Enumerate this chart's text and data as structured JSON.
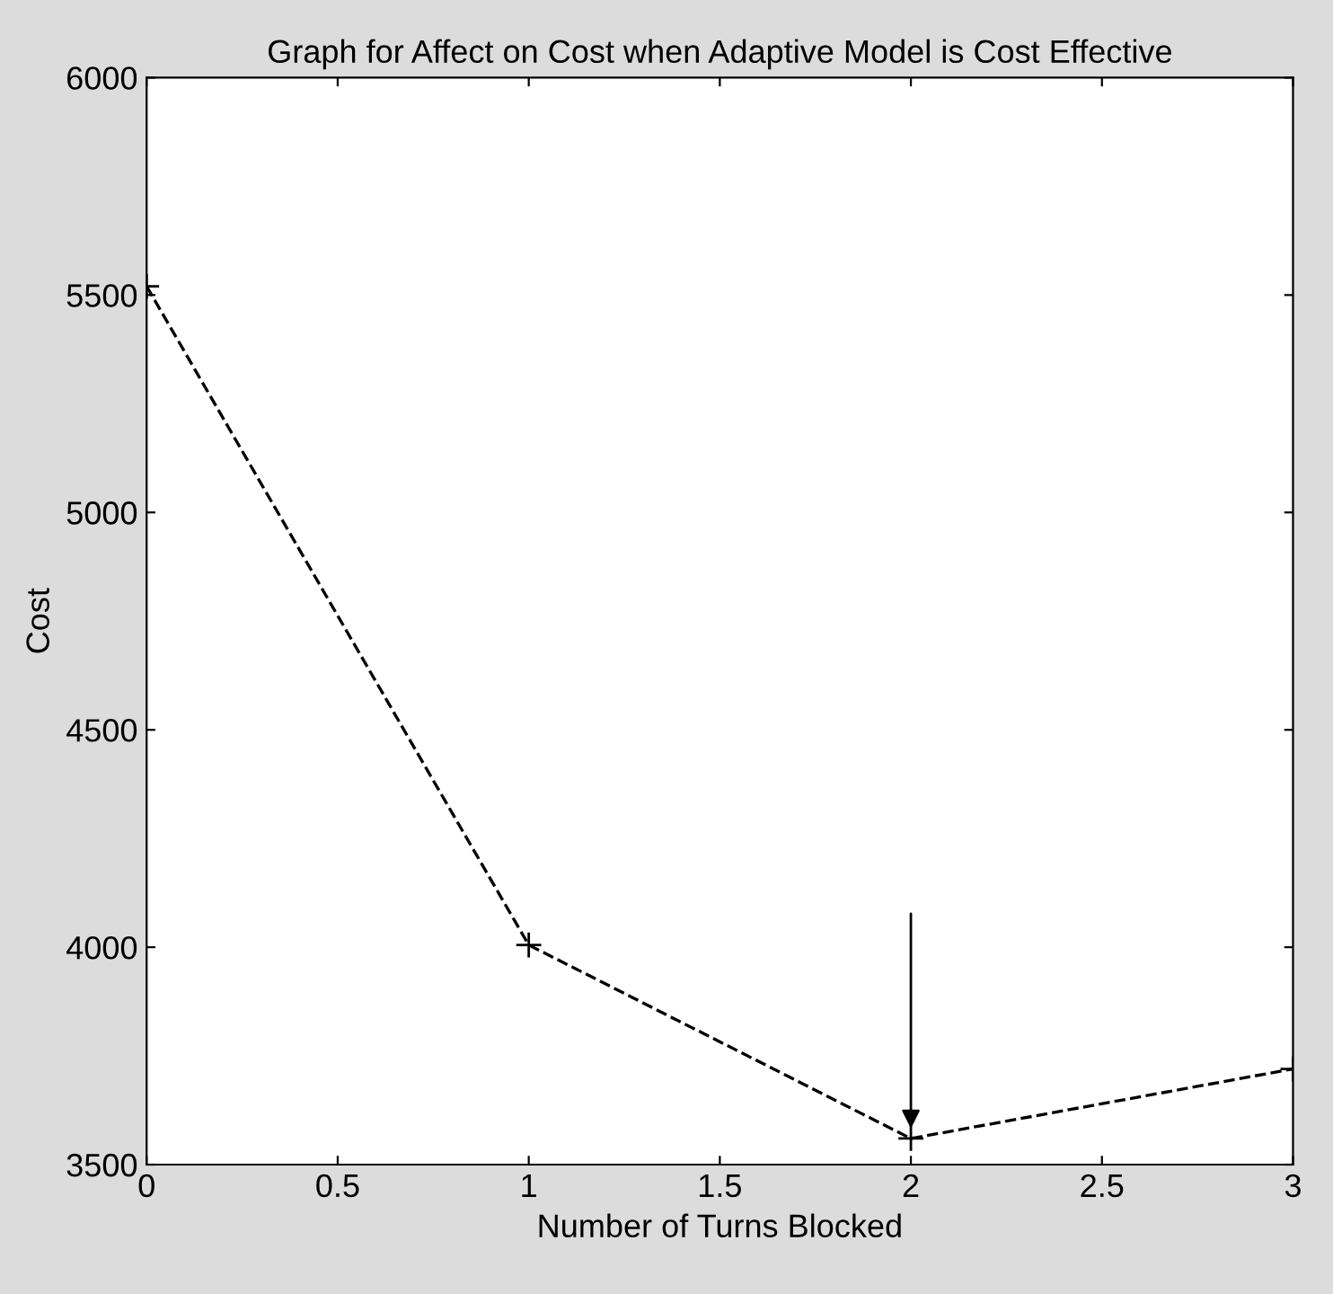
{
  "chart_data": {
    "type": "line",
    "title": "Graph for Affect on Cost when Adaptive Model is Cost Effective",
    "xlabel": "Number of Turns Blocked",
    "ylabel": "Cost",
    "x": [
      0,
      1,
      2,
      3
    ],
    "series": [
      {
        "color": "#000000",
        "values": [
          5520,
          4005,
          3560,
          3720
        ]
      }
    ],
    "xlim": [
      0,
      3
    ],
    "xticks": [
      0,
      0.5,
      1,
      1.5,
      2,
      2.5,
      3
    ],
    "ylim": [
      3500,
      6000
    ],
    "yticks": [
      3500,
      4000,
      4500,
      5000,
      5500,
      6000
    ],
    "marker": "cross",
    "line_style": "dashed",
    "grid": false,
    "legend": false
  }
}
